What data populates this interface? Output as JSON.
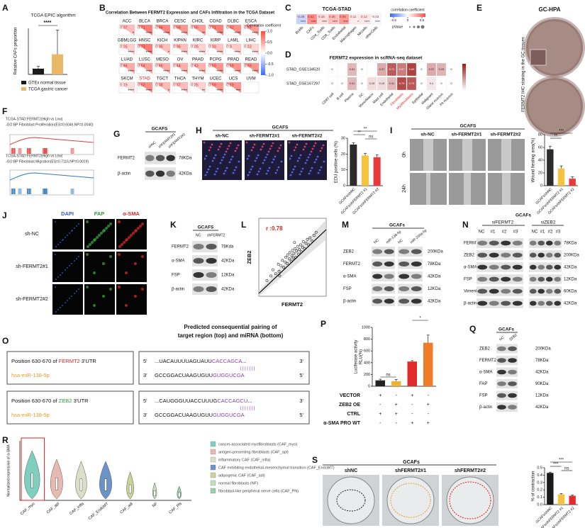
{
  "A": {
    "letter": "A",
    "title": "TCGA EPIC algorithm",
    "ylabel": "Relative CAFs proportion",
    "significance": "****",
    "legend": [
      "GTEx normal tissue",
      "TCGA gastric cancer"
    ],
    "colors": [
      "#1a1a1a",
      "#e8b968"
    ],
    "values": [
      0.1,
      0.35
    ],
    "errors": [
      0.04,
      0.42
    ],
    "ylim": [
      0,
      0.8
    ]
  },
  "B": {
    "letter": "B",
    "title": "Correlation Between FERMT2 Expression and CAFs Infiltration in the TCGA Dataset",
    "legend_title": "Correlation coefficient",
    "legend_ticks": [
      {
        "value": 1,
        "label": "1.0"
      },
      {
        "value": 0.5,
        "label": "0.5"
      },
      {
        "value": 0,
        "label": "0.0"
      },
      {
        "value": -0.5,
        "label": "-0.5"
      },
      {
        "value": -1,
        "label": "-1.0"
      }
    ],
    "cancers": [
      "ACC",
      "BLCA",
      "BRCA",
      "CESC",
      "CHOL",
      "COAD",
      "DLBC",
      "ESCA",
      "GBMLGG",
      "HNSC",
      "KICH",
      "KIPAN",
      "KIRC",
      "KIRP",
      "LAML",
      "LIHC",
      "LUAD",
      "LUSC",
      "MESO",
      "OV",
      "PAAD",
      "PCPG",
      "PRAD",
      "READ",
      "SKCM",
      "STAD",
      "TGCT",
      "THCA",
      "THYM",
      "UCEC",
      "UCS",
      "UVM"
    ],
    "values": [
      0.37,
      0.71,
      0.66,
      0.58,
      0.55,
      0.71,
      0.62,
      0.55,
      0.26,
      0.73,
      0.35,
      0.36,
      0.25,
      0.33,
      0.3,
      0.23,
      0.46,
      0.54,
      0.46,
      0.44,
      0.43,
      0.59,
      0.59,
      0.59,
      0.19,
      0.62,
      0.38,
      0.37,
      0.25,
      0.59,
      0.59,
      null
    ],
    "stars": [
      "*",
      "****",
      "****",
      "****",
      "**",
      "****",
      "****",
      "****",
      "****",
      "****",
      "*",
      "****",
      "****",
      "****",
      "****",
      "****",
      "****",
      "****",
      "****",
      "****",
      "****",
      "****",
      "****",
      "****",
      "****",
      "****",
      "*",
      "****",
      "**",
      "****",
      "***",
      null
    ]
  },
  "C": {
    "letter": "C",
    "title": "TCGA-STAD",
    "legend_title": "correlation coefficient",
    "legend_ticks": [
      -0.5,
      0,
      0.5
    ],
    "pvalue_label": "pValue",
    "columns": [
      "Bcells",
      "CAFs",
      "CD4_Tcells",
      "CD8_Tcells",
      "Endothelial",
      "Macrophages",
      "NKcells",
      "otherCells"
    ],
    "values": [
      -0.28,
      0.62,
      0.18,
      0.36,
      0.56,
      0.11,
      0.12,
      -0.03
    ],
    "stars": [
      "****",
      "****",
      "****",
      "****",
      "****",
      "*",
      "****",
      "****"
    ]
  },
  "D": {
    "letter": "D",
    "title": "FERMT2 expression in scRNA-seq dataset",
    "rows": [
      "STAD_GSE134520",
      "STAD_GSE167297"
    ],
    "columns": [
      "CD8T cell",
      "B cell",
      "Plasma",
      "DC",
      "Mono/Macro",
      "Mast cell",
      "Endothelial",
      "Fibroblasts",
      "Myofibroblasts",
      "Epithelial",
      "Malignant",
      "Gland mucous",
      "Pit mucous"
    ],
    "values": [
      [
        0,
        null,
        0.31,
        0,
        null,
        0.37,
        0.71,
        0.57,
        0.83,
        0,
        0.37,
        0.33,
        0
      ],
      [
        0,
        0,
        0.31,
        0,
        0.15,
        0.15,
        0.31,
        0.79,
        0.73,
        0,
        0.1,
        0,
        0
      ]
    ]
  },
  "E": {
    "letter": "E",
    "title": "GC-HPA",
    "side_label": "FERMT2 IHC staining in the GC tissues"
  },
  "F": {
    "letter": "F",
    "plots": [
      {
        "lines": [
          "TCGA-STAD:FERMT2(High vs Low)",
          "-GO:BP Fibroblast Proliferation(ES=0.6046,NP=0.0040)"
        ]
      },
      {
        "lines": [
          "TCGA-STAD:FERMT2(High vs Low)",
          "-GO:BP Fibroblast Migration(ES=0.7116,NP=0.0019)"
        ]
      }
    ]
  },
  "G": {
    "letter": "G",
    "header": "GCAFS",
    "lanes": [
      "shNC",
      "shFERMT2#1",
      "shFERMT2#2"
    ],
    "proteins": [
      "FERMT2",
      "β-actin"
    ],
    "sizes": [
      "78KDa",
      "42KDa"
    ]
  },
  "H": {
    "letter": "H",
    "header": "GCAFS",
    "groups": [
      "sh-NC",
      "sh-FERMT2#1",
      "sh-FERMT2#2"
    ],
    "ylabel": "EDU positive cells (%)",
    "yticks": [
      0,
      10,
      20,
      30
    ],
    "ylim": [
      0,
      30
    ],
    "values": [
      26,
      19,
      18
    ],
    "errors": [
      1.2,
      1.5,
      1.4
    ],
    "colors": [
      "#2b2b2b",
      "#f5c242",
      "#e83a3a"
    ],
    "xlabels": [
      "GCAFs/shNC",
      "GCAFs/shFERMT2 #1",
      "GCAFs/shFERMT2 #2"
    ],
    "sig": [
      "**",
      "**",
      "ns"
    ]
  },
  "I": {
    "letter": "I",
    "header": "GCAFS",
    "groups": [
      "sh-NC",
      "sh-FERMT2#1",
      "sh-FERMT2#2"
    ],
    "rows": [
      "0h",
      "24h"
    ],
    "ylabel": "Wound healing area(%)",
    "yticks": [
      0,
      20,
      40,
      60,
      80
    ],
    "ylim": [
      0,
      80
    ],
    "values": [
      57,
      27,
      11
    ],
    "errors": [
      5,
      4,
      3
    ],
    "colors": [
      "#2b2b2b",
      "#f5c242",
      "#e83a3a"
    ],
    "xlabels": [
      "GCAFs/shNC",
      "GCAFs/shFERMT2 #1",
      "GCAFs/shFERMT2 #2"
    ],
    "sig": [
      "**",
      "***"
    ]
  },
  "J": {
    "letter": "J",
    "columns": [
      "DAPI",
      "FAP",
      "α-SMA"
    ],
    "column_colors": [
      "#2b5fd9",
      "#2e9a3a",
      "#d92b2b"
    ],
    "rows": [
      "sh-NC",
      "sh-FERMT2#1",
      "sh-FERMT2#2"
    ]
  },
  "K": {
    "letter": "K",
    "header": "GCAFS",
    "lanes": [
      "NC",
      "shFERMT2"
    ],
    "proteins": [
      "FERMT2",
      "α-SMA",
      "FSP",
      "β-actin"
    ],
    "sizes": [
      "78Kda",
      "42KDa",
      "12KDa",
      "42KDa"
    ]
  },
  "L": {
    "letter": "L",
    "r_label": "r :0.78",
    "xlabel": "FERMT2",
    "ylabel": "ZEB2",
    "xlim": [
      0,
      10
    ],
    "ylim": [
      0,
      10
    ],
    "x": [
      1.2,
      1.8,
      2.1,
      2.5,
      2.9,
      3.0,
      3.3,
      3.5,
      3.7,
      3.9,
      4.0,
      4.2,
      4.3,
      4.5,
      4.6,
      4.8,
      4.9,
      5.0,
      5.1,
      5.2,
      5.4,
      5.5,
      5.6,
      5.8,
      5.9,
      6.0,
      6.2,
      6.3,
      6.5,
      6.6,
      6.8,
      7.0,
      7.2,
      7.4,
      7.6,
      7.9,
      8.2,
      8.5,
      3.1,
      5.3
    ],
    "y": [
      2.0,
      2.6,
      3.4,
      2.9,
      4.1,
      3.2,
      3.9,
      4.6,
      3.7,
      4.4,
      5.0,
      4.2,
      5.3,
      4.8,
      5.6,
      4.5,
      5.2,
      5.9,
      4.9,
      5.5,
      6.1,
      5.0,
      5.8,
      6.4,
      5.4,
      6.0,
      6.6,
      5.7,
      6.3,
      7.0,
      6.1,
      6.8,
      7.3,
      6.6,
      7.5,
      7.1,
      7.8,
      8.2,
      2.6,
      6.9
    ]
  },
  "M": {
    "letter": "M",
    "header": "GCAFs",
    "lanes": [
      "NC",
      "miR-138-5p",
      "NC",
      "miR-200a-5p"
    ],
    "proteins": [
      "ZEB2",
      "FERMT2",
      "α-SMA",
      "FSP",
      "β-actin"
    ],
    "sizes": [
      "200KDa",
      "78KDa",
      "42KDa",
      "12KDa",
      "42KDa"
    ]
  },
  "N": {
    "letter": "N",
    "header": "GCAFs",
    "groups": [
      "siFERMT2",
      "siZEB2"
    ],
    "lanes": [
      "NC",
      "#1",
      "#2",
      "#3"
    ],
    "proteins": [
      "FERMT2",
      "ZEB2",
      "α-SMA",
      "FSP",
      "Vimentin",
      "β-actin"
    ],
    "sizes": [
      "78KDa",
      "200KDa",
      "42KDa",
      "12KDa",
      "60KDa",
      "42KDa"
    ]
  },
  "O": {
    "letter": "O",
    "title": [
      "Predicted consequential pairing of",
      "target region (top) and miRNA (bottom)"
    ],
    "end5": "5'",
    "end3": "3'",
    "pairs": [
      {
        "prefix": "Position 630-670 of ",
        "gene": "FERMT2",
        "suffix": " 3'UTR",
        "mirna": "hsa-miR-138-5p",
        "top": "...UACAUUUUAGUAUU",
        "top_seed": "CACCAGCA",
        "top_tail": "...",
        "bars": "| | | | | | |",
        "bottom": "GCCGGACUAAGUGUU",
        "bottom_seed": "GUGGUCGA"
      },
      {
        "prefix": "Position 630-670 of ",
        "gene": "ZEB2",
        "suffix": " 3'UTR",
        "mirna": "hsa-miR-138-5p",
        "top": "...CAUGGGUUACCUUUG",
        "top_seed": "CACCAGCU",
        "top_tail": "...",
        "bars": "| | | | | | |",
        "bottom": "GCCGGACUAAGUGUU",
        "bottom_seed": "GUGGUCGA"
      }
    ]
  },
  "P": {
    "letter": "P",
    "ylabel": [
      "Luciferase activity",
      "RLU(%)"
    ],
    "yticks": [
      0,
      200,
      400,
      600,
      800,
      1000
    ],
    "ylim": [
      0,
      1000
    ],
    "values": [
      100,
      85,
      420,
      740
    ],
    "errors": [
      20,
      30,
      15,
      130
    ],
    "colors": [
      "#222222",
      "#f2b130",
      "#e02c2c",
      "#f07b2a"
    ],
    "sig": [
      "ns",
      "*"
    ],
    "conditions": [
      "VECTOR",
      "ZEB2 OE",
      "CTRL",
      "α-SMA PRO WT"
    ],
    "signs": [
      [
        "+",
        "-",
        "+",
        "-"
      ],
      [
        "-",
        "+",
        "-",
        "+"
      ],
      [
        "+",
        "+",
        "-",
        "-"
      ],
      [
        "-",
        "-",
        "+",
        "+"
      ]
    ]
  },
  "Q": {
    "letter": "Q",
    "header": "GCAFs",
    "lanes": [
      "NC",
      "ZEB2"
    ],
    "proteins": [
      "ZEB2",
      "FERMT2",
      "α-SMA",
      "FAP",
      "FSP",
      "β-actin"
    ],
    "sizes": [
      "200KDa",
      "78KDa",
      "42KDa",
      "90KDa",
      "12KDa",
      "42KDa"
    ]
  },
  "R": {
    "letter": "R",
    "ylabel": "Normalized expression of α-SMA",
    "categories": [
      "CAF_myo",
      "CAF_apl",
      "CAF_infla",
      "CAF_EndoMT",
      "CAF_adi",
      "NF",
      "CAF_PN"
    ],
    "colors": [
      "#7fcfc0",
      "#e7b9b0",
      "#d8e0c8",
      "#6a94c8",
      "#c9d39a",
      "#bfe0b8",
      "#9ad0a8"
    ],
    "legend": [
      "cancer-associated myofibroblasts (CAF_myo)",
      "antigen-presenting fibroblasts (CAF_apl)",
      "inflammatory CAF (CAF_infla)",
      "CAF exhibiting endothelial-mesenchymal transition (CAF_EndoMT)",
      "adipogenic CAF (CAF_adi)",
      "normal fibroblasts (NF)",
      "fibroblast-like peripheral nerve cells (CAF_PN)"
    ]
  },
  "S": {
    "letter": "S",
    "header": "GCAFs",
    "groups": [
      "shNC",
      "shFERMT2#1",
      "shFERMT2#2"
    ],
    "ylabel": "% of contraction",
    "yticks": [
      {
        "value": 0,
        "label": "0.0"
      },
      {
        "value": 0.1,
        "label": "0.1"
      },
      {
        "value": 0.2,
        "label": "0.2"
      },
      {
        "value": 0.3,
        "label": "0.3"
      },
      {
        "value": 0.4,
        "label": "0.4"
      },
      {
        "value": 0.5,
        "label": "0.5"
      }
    ],
    "ylim": [
      0,
      0.5
    ],
    "values": [
      0.43,
      0.14,
      0.12
    ],
    "errors": [
      0.01,
      0.01,
      0.01
    ],
    "colors": [
      "#1a1a1a",
      "#f5c242",
      "#e02c2c"
    ],
    "xlabels": [
      "GCAFs/shNC",
      "GCAFs/shFERMT2 #1",
      "GCAFs/shFERMT2 #2"
    ],
    "sig": [
      "***",
      "***",
      "ns"
    ]
  }
}
